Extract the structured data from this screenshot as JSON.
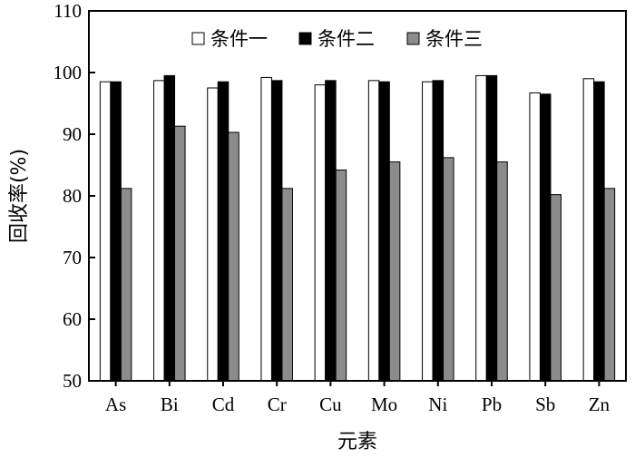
{
  "chart_data": {
    "type": "bar",
    "xlabel": "元素",
    "ylabel": "回收率(%)",
    "ylim": [
      50,
      110
    ],
    "yticks": [
      50,
      60,
      70,
      80,
      90,
      100,
      110
    ],
    "categories": [
      "As",
      "Bi",
      "Cd",
      "Cr",
      "Cu",
      "Mo",
      "Ni",
      "Pb",
      "Sb",
      "Zn"
    ],
    "legend_position": "top",
    "series": [
      {
        "name": "条件一",
        "color": "#ffffff",
        "values": [
          98.5,
          98.7,
          97.5,
          99.2,
          98.0,
          98.7,
          98.5,
          99.5,
          96.7,
          99.0
        ]
      },
      {
        "name": "条件二",
        "color": "#000000",
        "values": [
          98.5,
          99.5,
          98.5,
          98.7,
          98.7,
          98.5,
          98.7,
          99.5,
          96.5,
          98.5
        ]
      },
      {
        "name": "条件三",
        "color": "#8c8c8c",
        "values": [
          81.2,
          91.3,
          90.3,
          81.2,
          84.2,
          85.5,
          86.2,
          85.5,
          80.2,
          81.2
        ]
      }
    ]
  }
}
